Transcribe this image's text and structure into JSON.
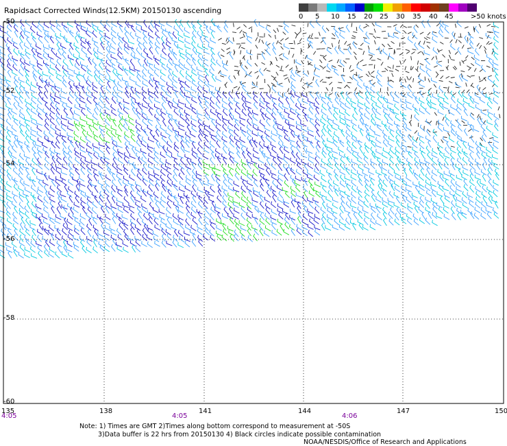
{
  "title": "Rapidsact Corrected Winds(12.5KM) 20150130 ascending",
  "legend": {
    "colors": [
      "#404040",
      "#7a7a7a",
      "#b8b8b8",
      "#00d8f0",
      "#00a8ff",
      "#0060ff",
      "#0000c8",
      "#00a000",
      "#00e000",
      "#f0f000",
      "#f0a000",
      "#ff6000",
      "#ff0000",
      "#d00000",
      "#a03000",
      "#704020",
      "#ff00ff",
      "#a000c0",
      "#500070"
    ],
    "labels": [
      "0",
      "5",
      "10",
      "15",
      "20",
      "25",
      "30",
      "35",
      "40",
      "45",
      ">50 knots"
    ]
  },
  "map": {
    "lat_labels": [
      "-50",
      "-52",
      "-54",
      "-56",
      "-58",
      "-60"
    ],
    "lon_labels": [
      "135",
      "138",
      "141",
      "144",
      "147",
      "150"
    ],
    "time_labels": [
      "4:05",
      "4:05",
      "4:06"
    ],
    "lat_range": [
      -60,
      -50
    ],
    "lon_range": [
      135,
      150
    ],
    "grid": true
  },
  "notes": {
    "line1": "Note: 1) Times are GMT 2)Times along bottom correspond to measurement at -50S",
    "line2": "3)Data buffer is 22 hrs from 20150130 4) Black circles indicate possible contamination",
    "credit": "NOAA/NESDIS/Office of Research and Applications"
  }
}
